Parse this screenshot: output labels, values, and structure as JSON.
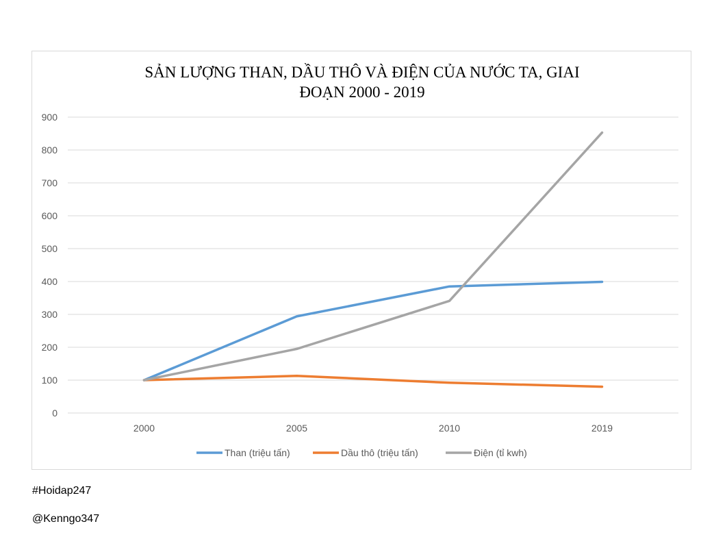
{
  "chart_data": {
    "type": "line",
    "title_lines": [
      "SẢN LƯỢNG THAN, DẦU THÔ VÀ ĐIỆN CỦA NƯỚC TA, GIAI",
      "ĐOẠN 2000 - 2019"
    ],
    "categories": [
      "2000",
      "2005",
      "2010",
      "2019"
    ],
    "ylim": [
      0,
      900
    ],
    "yticks": [
      0,
      100,
      200,
      300,
      400,
      500,
      600,
      700,
      800,
      900
    ],
    "grid": true,
    "legend": "bottom",
    "series": [
      {
        "name": "Than (triệu tấn)",
        "color": "#5b9bd5",
        "values": [
          100,
          294,
          385,
          399
        ]
      },
      {
        "name": "Dầu thô (triệu tấn)",
        "color": "#ed7d31",
        "values": [
          100,
          113,
          92,
          80
        ]
      },
      {
        "name": "Điện (tỉ kwh)",
        "color": "#a5a5a5",
        "values": [
          100,
          195,
          341,
          853
        ]
      }
    ]
  },
  "footer": {
    "tag": "#Hoidap247",
    "author": "@Kenngo347"
  }
}
